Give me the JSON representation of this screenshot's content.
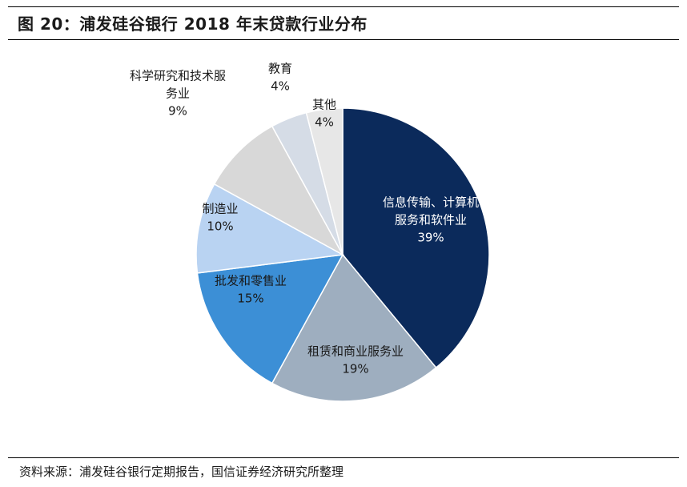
{
  "title": "图 20：浦发硅谷银行 2018 年末贷款行业分布",
  "source": "资料来源：浦发硅谷银行定期报告，国信证券经济研究所整理",
  "chart_data": {
    "type": "pie",
    "title": "浦发硅谷银行 2018 年末贷款行业分布",
    "slices": [
      {
        "name": "信息传输、计算机服务和软件业",
        "label_lines": [
          "信息传输、计算机",
          "服务和软件业"
        ],
        "value": 39,
        "pct_label": "39%",
        "color": "#0b2a5b",
        "text_color": "#ffffff",
        "label_pos": "inside"
      },
      {
        "name": "租赁和商业服务业",
        "label_lines": [
          "租赁和商业服务业"
        ],
        "value": 19,
        "pct_label": "19%",
        "color": "#9eaebf",
        "text_color": "#1a1a1a",
        "label_pos": "inside"
      },
      {
        "name": "批发和零售业",
        "label_lines": [
          "批发和零售业"
        ],
        "value": 15,
        "pct_label": "15%",
        "color": "#3c8fd6",
        "text_color": "#1a1a1a",
        "label_pos": "inside"
      },
      {
        "name": "制造业",
        "label_lines": [
          "制造业"
        ],
        "value": 10,
        "pct_label": "10%",
        "color": "#b9d3f2",
        "text_color": "#1a1a1a",
        "label_pos": "inside"
      },
      {
        "name": "科学研究和技术服务业",
        "label_lines": [
          "科学研究和技术服",
          "务业"
        ],
        "value": 9,
        "pct_label": "9%",
        "color": "#d8d8d8",
        "text_color": "#1a1a1a",
        "label_pos": "outside"
      },
      {
        "name": "教育",
        "label_lines": [
          "教育"
        ],
        "value": 4,
        "pct_label": "4%",
        "color": "#d5dce6",
        "text_color": "#1a1a1a",
        "label_pos": "outside"
      },
      {
        "name": "其他",
        "label_lines": [
          "其他"
        ],
        "value": 4,
        "pct_label": "4%",
        "color": "#e7e7e7",
        "text_color": "#1a1a1a",
        "label_pos": "inside"
      }
    ]
  }
}
